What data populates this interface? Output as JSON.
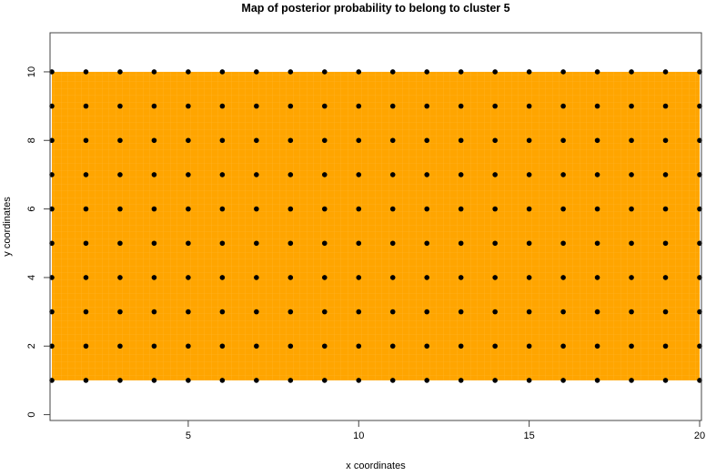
{
  "chart_data": {
    "type": "heatmap",
    "title": "Map of posterior probability to belong to cluster  5",
    "xlabel": "x coordinates",
    "ylabel": "y coordinates",
    "xlim": [
      1,
      20
    ],
    "ylim": [
      -0.17,
      11.14
    ],
    "x_ticks": [
      "5",
      "10",
      "15",
      "20"
    ],
    "x_tick_values": [
      5,
      10,
      15,
      20
    ],
    "y_ticks": [
      "0",
      "2",
      "4",
      "6",
      "8",
      "10"
    ],
    "y_tick_values": [
      0,
      2,
      4,
      6,
      8,
      10
    ],
    "grid": false,
    "fill_region": {
      "x": [
        1,
        20
      ],
      "y": [
        1,
        10
      ],
      "color": "#FFA500",
      "probability": 1
    },
    "points": {
      "x": [
        1,
        2,
        3,
        4,
        5,
        6,
        7,
        8,
        9,
        10,
        11,
        12,
        13,
        14,
        15,
        16,
        17,
        18,
        19,
        20
      ],
      "y": [
        1,
        2,
        3,
        4,
        5,
        6,
        7,
        8,
        9,
        10
      ],
      "color": "#000000"
    }
  }
}
